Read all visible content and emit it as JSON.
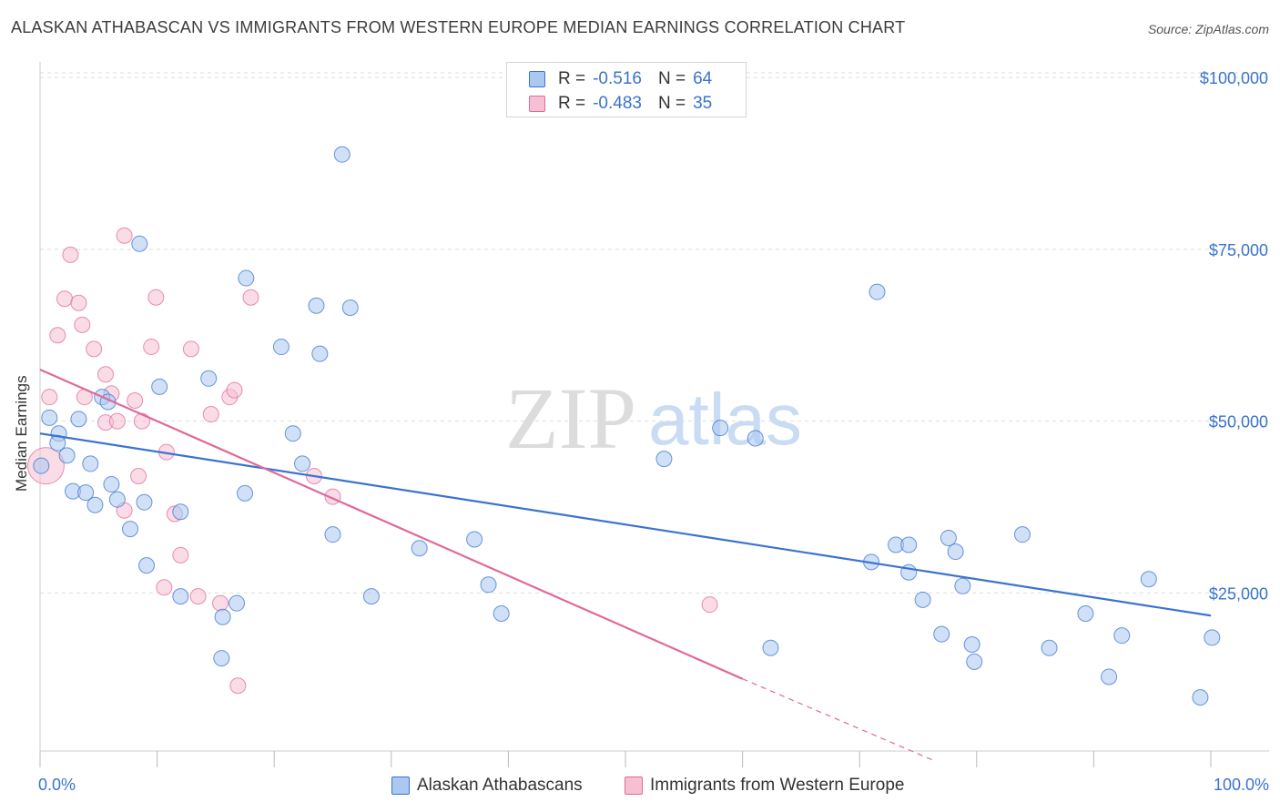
{
  "title": "ALASKAN ATHABASCAN VS IMMIGRANTS FROM WESTERN EUROPE MEDIAN EARNINGS CORRELATION CHART",
  "source": "Source: ZipAtlas.com",
  "watermark": {
    "zip": "ZIP",
    "atlas": "atlas"
  },
  "legend": {
    "r_label": "R =",
    "n_label": "N =",
    "series1": {
      "r": "-0.516",
      "n": "64"
    },
    "series2": {
      "r": "-0.483",
      "n": "35"
    }
  },
  "bottom_legend": {
    "series1": "Alaskan Athabascans",
    "series2": "Immigrants from Western Europe"
  },
  "x_axis": {
    "min_label": "0.0%",
    "max_label": "100.0%"
  },
  "chart_data": {
    "type": "scatter",
    "title": "ALASKAN ATHABASCAN VS IMMIGRANTS FROM WESTERN EUROPE MEDIAN EARNINGS CORRELATION CHART",
    "xlabel": "",
    "ylabel": "Median Earnings",
    "xlim": [
      0,
      100
    ],
    "ylim": [
      2000,
      102000
    ],
    "y_ticks": [
      25000,
      50000,
      75000,
      100000
    ],
    "y_tick_labels": [
      "$25,000",
      "$50,000",
      "$75,000",
      "$100,000"
    ],
    "colors": {
      "series1": "#3a73cf",
      "series1_fill": "#aac8f0",
      "series2": "#e0699a",
      "series2_fill": "#f6c0d3",
      "grid": "#dddddd",
      "axis_label": "#3a73cf"
    },
    "series": [
      {
        "name": "Alaskan Athabascans",
        "points": [
          [
            0.1,
            43.5
          ],
          [
            0.8,
            50.5
          ],
          [
            1.6,
            48.2
          ],
          [
            1.5,
            46.8
          ],
          [
            2.3,
            45.0
          ],
          [
            2.8,
            39.8
          ],
          [
            3.3,
            50.3
          ],
          [
            3.9,
            39.6
          ],
          [
            4.3,
            43.8
          ],
          [
            4.7,
            37.8
          ],
          [
            5.3,
            53.5
          ],
          [
            5.8,
            52.8
          ],
          [
            6.1,
            40.8
          ],
          [
            6.6,
            38.6
          ],
          [
            7.7,
            34.3
          ],
          [
            8.5,
            75.8
          ],
          [
            8.9,
            38.2
          ],
          [
            9.1,
            29.0
          ],
          [
            10.2,
            55.0
          ],
          [
            12.0,
            36.8
          ],
          [
            12.0,
            24.5
          ],
          [
            14.4,
            56.2
          ],
          [
            15.5,
            15.5
          ],
          [
            15.6,
            21.5
          ],
          [
            16.8,
            23.5
          ],
          [
            17.5,
            39.5
          ],
          [
            17.6,
            70.8
          ],
          [
            20.6,
            60.8
          ],
          [
            21.6,
            48.2
          ],
          [
            22.4,
            43.8
          ],
          [
            23.6,
            66.8
          ],
          [
            23.9,
            59.8
          ],
          [
            25.0,
            33.5
          ],
          [
            25.8,
            88.8
          ],
          [
            26.5,
            66.5
          ],
          [
            28.3,
            24.5
          ],
          [
            32.4,
            31.5
          ],
          [
            37.1,
            32.8
          ],
          [
            38.3,
            26.2
          ],
          [
            39.4,
            22.0
          ],
          [
            53.3,
            44.5
          ],
          [
            58.1,
            49.0
          ],
          [
            61.1,
            47.5
          ],
          [
            62.4,
            17.0
          ],
          [
            71.0,
            29.5
          ],
          [
            71.5,
            68.8
          ],
          [
            73.1,
            32.0
          ],
          [
            74.2,
            32.0
          ],
          [
            74.2,
            28.0
          ],
          [
            75.4,
            24.0
          ],
          [
            77.0,
            19.0
          ],
          [
            77.6,
            33.0
          ],
          [
            78.2,
            31.0
          ],
          [
            78.8,
            26.0
          ],
          [
            79.6,
            17.5
          ],
          [
            79.8,
            15.0
          ],
          [
            83.9,
            33.5
          ],
          [
            86.2,
            17.0
          ],
          [
            89.3,
            22.0
          ],
          [
            91.3,
            12.8
          ],
          [
            92.4,
            18.8
          ],
          [
            94.7,
            27.0
          ],
          [
            99.1,
            9.8
          ],
          [
            100.1,
            18.5
          ]
        ]
      },
      {
        "name": "Immigrants from Western Europe",
        "points": [
          [
            0.5,
            43.5
          ],
          [
            0.8,
            53.5
          ],
          [
            1.5,
            62.5
          ],
          [
            2.1,
            67.8
          ],
          [
            2.6,
            74.2
          ],
          [
            3.3,
            67.2
          ],
          [
            3.6,
            64.0
          ],
          [
            3.8,
            53.5
          ],
          [
            4.6,
            60.5
          ],
          [
            5.6,
            49.8
          ],
          [
            5.6,
            56.8
          ],
          [
            6.1,
            54.0
          ],
          [
            6.6,
            50.0
          ],
          [
            7.2,
            77.0
          ],
          [
            7.2,
            37.0
          ],
          [
            8.1,
            53.0
          ],
          [
            8.4,
            42.0
          ],
          [
            8.7,
            50.0
          ],
          [
            9.5,
            60.8
          ],
          [
            9.9,
            68.0
          ],
          [
            10.6,
            25.8
          ],
          [
            10.8,
            45.5
          ],
          [
            11.5,
            36.5
          ],
          [
            12.0,
            30.5
          ],
          [
            12.9,
            60.5
          ],
          [
            13.5,
            24.5
          ],
          [
            14.6,
            51.0
          ],
          [
            15.4,
            23.5
          ],
          [
            16.2,
            53.5
          ],
          [
            16.6,
            54.5
          ],
          [
            16.9,
            11.5
          ],
          [
            18.0,
            68.0
          ],
          [
            23.4,
            42.0
          ],
          [
            25.0,
            39.0
          ],
          [
            57.2,
            23.3
          ]
        ]
      }
    ],
    "trend_lines": [
      {
        "series": "Alaskan Athabascans",
        "x0": 0,
        "y0": 48.2,
        "x1": 100,
        "y1": 21.7
      },
      {
        "series": "Immigrants from Western Europe",
        "x0": 0,
        "y0": 57.5,
        "x1": 60,
        "y1": 12.5,
        "dashed_to_x": 76.5,
        "dashed_to_y": 0.5
      }
    ],
    "units": "thousands of USD"
  }
}
